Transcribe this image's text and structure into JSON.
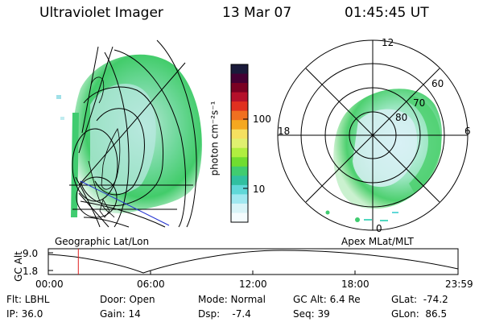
{
  "header": {
    "instrument": "Ultraviolet Imager",
    "date": "13 Mar 07",
    "time": "01:45:45 UT"
  },
  "left_panel": {
    "caption": "Geographic Lat/Lon"
  },
  "right_panel": {
    "caption": "Apex MLat/MLT",
    "mlt_labels": [
      "12",
      "18",
      "6",
      "0"
    ],
    "mlat_labels": [
      "60",
      "70",
      "80"
    ]
  },
  "colorbar": {
    "unit": "photon cm⁻²s⁻¹",
    "tick_labels": [
      "100",
      "10"
    ],
    "colors": [
      "#1a1a3a",
      "#440033",
      "#7a0022",
      "#b5102a",
      "#e03020",
      "#f07020",
      "#f5a820",
      "#f5e060",
      "#e0f070",
      "#b0ee40",
      "#70dd30",
      "#40cc70",
      "#30c0a0",
      "#60d8d8",
      "#a0e8f0",
      "#d8f4f8",
      "#f4fcfe"
    ]
  },
  "timeline": {
    "ylabel": "GC Alt",
    "y_ticks": [
      "9.0",
      "1.8"
    ],
    "x_ticks": [
      "00:00",
      "06:00",
      "12:00",
      "18:00",
      "23:59"
    ],
    "marker_time_hours": 1.76
  },
  "info": {
    "flt": "Flt: LBHL",
    "ip": "IP: 36.0",
    "door": "Door: Open",
    "gain": "Gain: 14",
    "mode": "Mode: Normal",
    "dsp": "Dsp:    -7.4",
    "gc_alt": "GC Alt: 6.4 Re",
    "seq": "Seq: 39",
    "glat": "GLat:  -74.2",
    "glon": "GLon:  86.5"
  }
}
